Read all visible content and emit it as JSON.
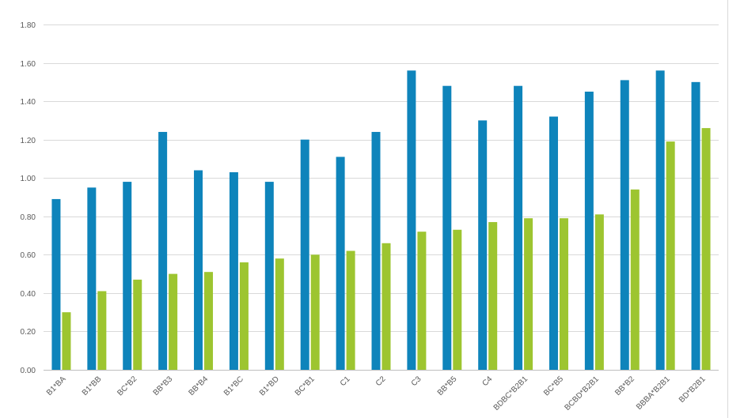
{
  "chart_data": {
    "type": "bar",
    "title": "",
    "xlabel": "",
    "ylabel": "",
    "ylim": [
      0,
      1.8
    ],
    "y_ticks": [
      "0.00",
      "0.20",
      "0.40",
      "0.60",
      "0.80",
      "1.00",
      "1.20",
      "1.40",
      "1.60",
      "1.80"
    ],
    "grid": true,
    "legend": "none",
    "categories": [
      "B1*BA",
      "B1*BB",
      "BC*B2",
      "BB*B3",
      "BB*B4",
      "B1*BC",
      "B1*BD",
      "BC*B1",
      "C1",
      "C2",
      "C3",
      "BB*B5",
      "C4",
      "BDBC*B2B1",
      "BC*B5",
      "BCBD*B2B1",
      "BB*B2",
      "BBBA*B2B1",
      "BD*B2B1"
    ],
    "series": [
      {
        "color": "#0e84bb",
        "values": [
          0.89,
          0.95,
          0.98,
          1.24,
          1.04,
          1.03,
          0.98,
          1.2,
          1.11,
          1.24,
          1.56,
          1.48,
          1.3,
          1.48,
          1.32,
          1.45,
          1.51,
          1.56,
          1.5
        ]
      },
      {
        "color": "#9dc530",
        "values": [
          0.3,
          0.41,
          0.47,
          0.5,
          0.51,
          0.56,
          0.58,
          0.6,
          0.62,
          0.66,
          0.72,
          0.73,
          0.77,
          0.79,
          0.79,
          0.81,
          0.94,
          1.19,
          1.26
        ]
      }
    ]
  }
}
